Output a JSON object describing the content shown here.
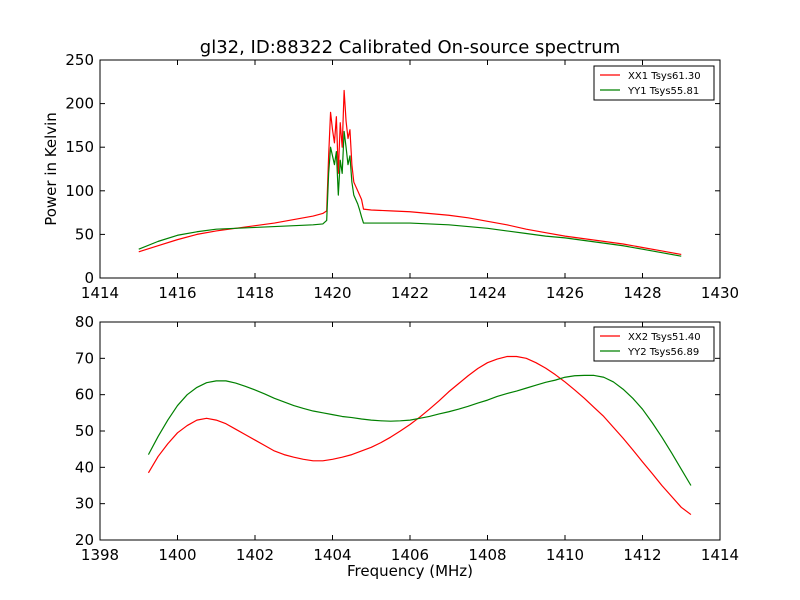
{
  "figure": {
    "title": "gl32, ID:88322 Calibrated On-source spectrum",
    "xlabel": "Frequency (MHz)"
  },
  "chart_data": [
    {
      "type": "line",
      "title": "gl32, ID:88322 Calibrated On-source spectrum",
      "xlabel": "",
      "ylabel": "Power in Kelvin",
      "xlim": [
        1414,
        1430
      ],
      "ylim": [
        0,
        250
      ],
      "xticks": [
        1414,
        1416,
        1418,
        1420,
        1422,
        1424,
        1426,
        1428,
        1430
      ],
      "yticks": [
        0,
        50,
        100,
        150,
        200,
        250
      ],
      "legend_position": "top-right",
      "series": [
        {
          "name": "XX1 Tsys61.30",
          "color": "#ff0000",
          "x": [
            1415.0,
            1415.5,
            1416.0,
            1416.5,
            1417.0,
            1417.5,
            1418.0,
            1418.5,
            1419.0,
            1419.5,
            1419.75,
            1419.85,
            1419.9,
            1419.95,
            1420.0,
            1420.05,
            1420.1,
            1420.15,
            1420.2,
            1420.25,
            1420.3,
            1420.35,
            1420.4,
            1420.45,
            1420.5,
            1420.55,
            1420.6,
            1420.65,
            1420.7,
            1420.75,
            1420.8,
            1421.0,
            1421.5,
            1422.0,
            1422.5,
            1423.0,
            1423.5,
            1424.0,
            1424.5,
            1425.0,
            1425.5,
            1426.0,
            1426.5,
            1427.0,
            1427.5,
            1428.0,
            1428.5,
            1429.0
          ],
          "y": [
            30,
            37,
            44,
            50,
            54,
            57,
            60,
            63,
            67,
            71,
            74,
            77,
            140,
            190,
            170,
            155,
            185,
            120,
            178,
            150,
            215,
            180,
            160,
            170,
            130,
            110,
            105,
            100,
            95,
            90,
            79,
            78,
            77,
            76,
            74,
            72,
            69,
            65,
            61,
            56,
            52,
            48,
            45,
            42,
            39,
            35,
            31,
            27
          ]
        },
        {
          "name": "YY1 Tsys55.81",
          "color": "#008000",
          "x": [
            1415.0,
            1415.5,
            1416.0,
            1416.5,
            1417.0,
            1417.5,
            1418.0,
            1418.5,
            1419.0,
            1419.5,
            1419.75,
            1419.85,
            1419.9,
            1419.95,
            1420.0,
            1420.05,
            1420.1,
            1420.15,
            1420.2,
            1420.25,
            1420.3,
            1420.35,
            1420.4,
            1420.45,
            1420.5,
            1420.55,
            1420.6,
            1420.65,
            1420.7,
            1420.75,
            1420.8,
            1421.0,
            1421.5,
            1422.0,
            1422.5,
            1423.0,
            1423.5,
            1424.0,
            1424.5,
            1425.0,
            1425.5,
            1426.0,
            1426.5,
            1427.0,
            1427.5,
            1428.0,
            1428.5,
            1429.0
          ],
          "y": [
            33,
            42,
            49,
            53,
            56,
            57,
            58,
            59,
            60,
            61,
            62,
            66,
            120,
            150,
            140,
            130,
            145,
            95,
            135,
            120,
            168,
            150,
            130,
            140,
            110,
            95,
            90,
            85,
            78,
            70,
            63,
            63,
            63,
            63,
            62,
            61,
            59,
            57,
            54,
            51,
            48,
            46,
            43,
            40,
            37,
            33,
            29,
            25
          ]
        }
      ]
    },
    {
      "type": "line",
      "title": "",
      "xlabel": "Frequency (MHz)",
      "ylabel": "",
      "xlim": [
        1398,
        1414
      ],
      "ylim": [
        20,
        80
      ],
      "xticks": [
        1398,
        1400,
        1402,
        1404,
        1406,
        1408,
        1410,
        1412,
        1414
      ],
      "yticks": [
        20,
        30,
        40,
        50,
        60,
        70,
        80
      ],
      "legend_position": "top-right",
      "series": [
        {
          "name": "XX2 Tsys51.40",
          "color": "#ff0000",
          "x": [
            1399.25,
            1399.5,
            1399.75,
            1400.0,
            1400.25,
            1400.5,
            1400.75,
            1401.0,
            1401.25,
            1401.5,
            1401.75,
            1402.0,
            1402.25,
            1402.5,
            1402.75,
            1403.0,
            1403.25,
            1403.5,
            1403.75,
            1404.0,
            1404.25,
            1404.5,
            1404.75,
            1405.0,
            1405.25,
            1405.5,
            1405.75,
            1406.0,
            1406.25,
            1406.5,
            1406.75,
            1407.0,
            1407.25,
            1407.5,
            1407.75,
            1408.0,
            1408.25,
            1408.5,
            1408.75,
            1409.0,
            1409.25,
            1409.5,
            1409.75,
            1410.0,
            1410.25,
            1410.5,
            1410.75,
            1411.0,
            1411.25,
            1411.5,
            1411.75,
            1412.0,
            1412.25,
            1412.5,
            1412.75,
            1413.0,
            1413.25
          ],
          "y": [
            38.5,
            43,
            46.5,
            49.5,
            51.5,
            53,
            53.5,
            53,
            52,
            50.5,
            49,
            47.5,
            46,
            44.5,
            43.5,
            42.8,
            42.2,
            41.8,
            41.8,
            42.2,
            42.8,
            43.5,
            44.5,
            45.5,
            46.8,
            48.3,
            50,
            51.8,
            53.8,
            56,
            58.3,
            60.8,
            63,
            65.2,
            67.2,
            68.8,
            69.8,
            70.5,
            70.5,
            70,
            68.8,
            67.3,
            65.5,
            63.5,
            61.3,
            59,
            56.5,
            54,
            51,
            48,
            44.8,
            41.5,
            38.3,
            35,
            32,
            29,
            27
          ]
        },
        {
          "name": "YY2 Tsys56.89",
          "color": "#008000",
          "x": [
            1399.25,
            1399.5,
            1399.75,
            1400.0,
            1400.25,
            1400.5,
            1400.75,
            1401.0,
            1401.25,
            1401.5,
            1401.75,
            1402.0,
            1402.25,
            1402.5,
            1402.75,
            1403.0,
            1403.25,
            1403.5,
            1403.75,
            1404.0,
            1404.25,
            1404.5,
            1404.75,
            1405.0,
            1405.25,
            1405.5,
            1405.75,
            1406.0,
            1406.25,
            1406.5,
            1406.75,
            1407.0,
            1407.25,
            1407.5,
            1407.75,
            1408.0,
            1408.25,
            1408.5,
            1408.75,
            1409.0,
            1409.25,
            1409.5,
            1409.75,
            1410.0,
            1410.25,
            1410.5,
            1410.75,
            1411.0,
            1411.25,
            1411.5,
            1411.75,
            1412.0,
            1412.25,
            1412.5,
            1412.75,
            1413.0,
            1413.25
          ],
          "y": [
            43.5,
            48.5,
            53,
            57,
            60,
            62,
            63.3,
            63.8,
            63.8,
            63.2,
            62.3,
            61.3,
            60.2,
            59,
            58,
            57,
            56.2,
            55.5,
            55,
            54.5,
            54,
            53.7,
            53.3,
            53,
            52.8,
            52.7,
            52.8,
            53,
            53.5,
            54,
            54.7,
            55.3,
            56,
            56.8,
            57.7,
            58.5,
            59.5,
            60.3,
            61,
            61.8,
            62.6,
            63.4,
            64,
            64.8,
            65.2,
            65.3,
            65.3,
            64.8,
            63.5,
            61.5,
            59,
            56,
            52.3,
            48.3,
            44,
            39.5,
            35
          ]
        }
      ]
    }
  ]
}
